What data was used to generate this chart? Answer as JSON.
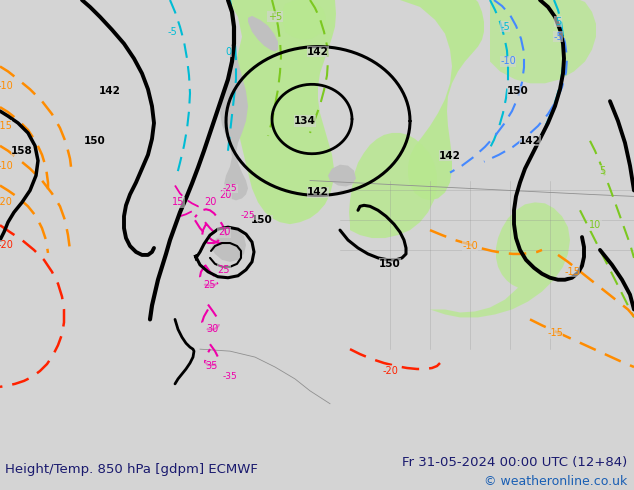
{
  "title_left": "Height/Temp. 850 hPa [gdpm] ECMWF",
  "title_right": "Fr 31-05-2024 00:00 UTC (12+84)",
  "copyright": "© weatheronline.co.uk",
  "title_color": "#1a1a6e",
  "copyright_color": "#1a5fb4",
  "title_fontsize": 9.5,
  "copyright_fontsize": 9,
  "bg_color": "#d4d4d4",
  "green_fill": "#b8e890",
  "gray_fill": "#c0c0c0",
  "black_line": "#000000",
  "orange_line": "#ff8c00",
  "cyan_line": "#00bcd4",
  "green_line": "#7cc820",
  "blue_line": "#4488ff",
  "magenta_line": "#ee00aa",
  "red_line": "#ff2200"
}
